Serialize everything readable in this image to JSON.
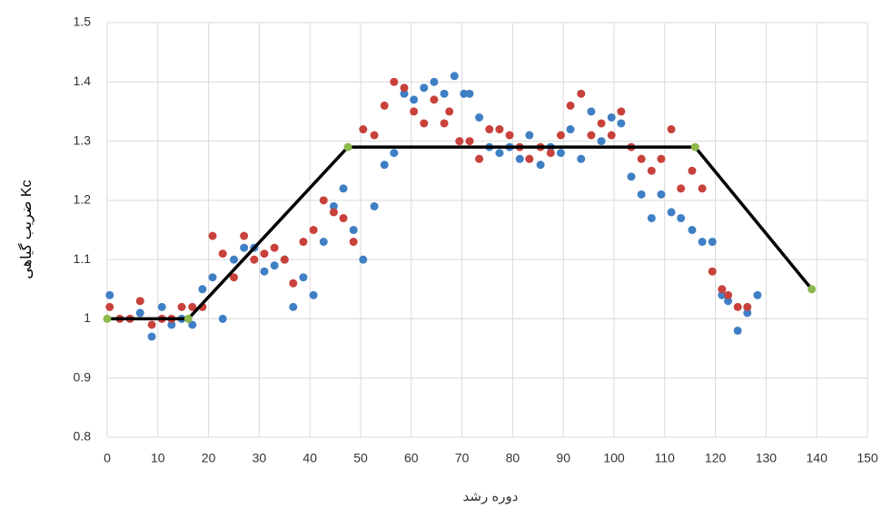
{
  "chart_data": {
    "type": "scatter",
    "xlabel": "دوره رشد",
    "ylabel": "ضریب گیاهی Kc",
    "xlim": [
      0,
      150
    ],
    "xticks": [
      0,
      10,
      20,
      30,
      40,
      50,
      60,
      70,
      80,
      90,
      100,
      110,
      120,
      130,
      140,
      150
    ],
    "ylim": [
      0.8,
      1.5
    ],
    "yticks": [
      0.8,
      0.9,
      1,
      1.1,
      1.2,
      1.3,
      1.4,
      1.5
    ],
    "grid": true,
    "series": [
      {
        "color": "#3f7fc4",
        "x": [
          0.5,
          6.5,
          8.8,
          10.8,
          12.7,
          14.7,
          16.8,
          18.8,
          20.8,
          22.8,
          25,
          27,
          29,
          31,
          33,
          35,
          36.7,
          38.7,
          40.7,
          42.7,
          44.7,
          46.6,
          48.6,
          50.5,
          52.7,
          54.7,
          56.6,
          58.6,
          60.5,
          62.5,
          64.5,
          66.5,
          68.5,
          70.4,
          71.5,
          73.4,
          75.4,
          77.4,
          79.4,
          81.4,
          83.3,
          85.5,
          87.5,
          89.5,
          91.4,
          93.5,
          95.5,
          97.5,
          99.5,
          101.4,
          103.4,
          105.4,
          107.4,
          109.3,
          111.3,
          113.2,
          115.4,
          117.4,
          119.4,
          121.3,
          122.5,
          124.4,
          126.3,
          128.3
        ],
        "values": [
          1.04,
          1.01,
          0.97,
          1.02,
          0.99,
          1.0,
          0.99,
          1.05,
          1.07,
          1.0,
          1.1,
          1.12,
          1.12,
          1.08,
          1.09,
          1.1,
          1.02,
          1.07,
          1.04,
          1.13,
          1.19,
          1.22,
          1.15,
          1.1,
          1.19,
          1.26,
          1.28,
          1.38,
          1.37,
          1.39,
          1.4,
          1.38,
          1.41,
          1.38,
          1.38,
          1.34,
          1.29,
          1.28,
          1.29,
          1.27,
          1.31,
          1.26,
          1.29,
          1.28,
          1.32,
          1.27,
          1.35,
          1.3,
          1.34,
          1.33,
          1.24,
          1.21,
          1.17,
          1.21,
          1.18,
          1.17,
          1.15,
          1.13,
          1.13,
          1.04,
          1.03,
          0.98,
          1.01,
          1.04
        ]
      },
      {
        "color": "#c8413b",
        "x": [
          0.5,
          2.5,
          4.5,
          6.5,
          8.8,
          10.8,
          12.7,
          14.7,
          16.8,
          18.8,
          20.8,
          22.8,
          25,
          27,
          29,
          31,
          33,
          35,
          36.7,
          38.7,
          40.7,
          42.7,
          44.7,
          46.6,
          48.6,
          50.5,
          52.7,
          54.7,
          56.6,
          58.6,
          60.5,
          62.5,
          64.5,
          66.5,
          67.5,
          69.5,
          71.5,
          73.4,
          75.4,
          77.4,
          79.4,
          81.4,
          83.3,
          85.5,
          87.5,
          89.5,
          91.4,
          93.5,
          95.5,
          97.5,
          99.5,
          101.4,
          103.4,
          105.4,
          107.4,
          109.3,
          111.3,
          113.2,
          115.4,
          117.4,
          119.4,
          121.3,
          122.5,
          124.4,
          126.3
        ],
        "values": [
          1.02,
          1.0,
          1.0,
          1.03,
          0.99,
          1.0,
          1.0,
          1.02,
          1.02,
          1.02,
          1.14,
          1.11,
          1.07,
          1.14,
          1.1,
          1.11,
          1.12,
          1.1,
          1.06,
          1.13,
          1.15,
          1.2,
          1.18,
          1.17,
          1.13,
          1.32,
          1.31,
          1.36,
          1.4,
          1.39,
          1.35,
          1.33,
          1.37,
          1.33,
          1.35,
          1.3,
          1.3,
          1.27,
          1.32,
          1.32,
          1.31,
          1.29,
          1.27,
          1.29,
          1.28,
          1.31,
          1.36,
          1.38,
          1.31,
          1.33,
          1.31,
          1.35,
          1.29,
          1.27,
          1.25,
          1.27,
          1.32,
          1.22,
          1.25,
          1.22,
          1.08,
          1.05,
          1.04,
          1.02,
          1.02
        ]
      },
      {
        "color": "#000000",
        "marker_color": "#8cb84c",
        "line": true,
        "x": [
          0,
          16,
          47.5,
          116,
          139
        ],
        "values": [
          1,
          1,
          1.29,
          1.29,
          1.05
        ]
      }
    ]
  }
}
